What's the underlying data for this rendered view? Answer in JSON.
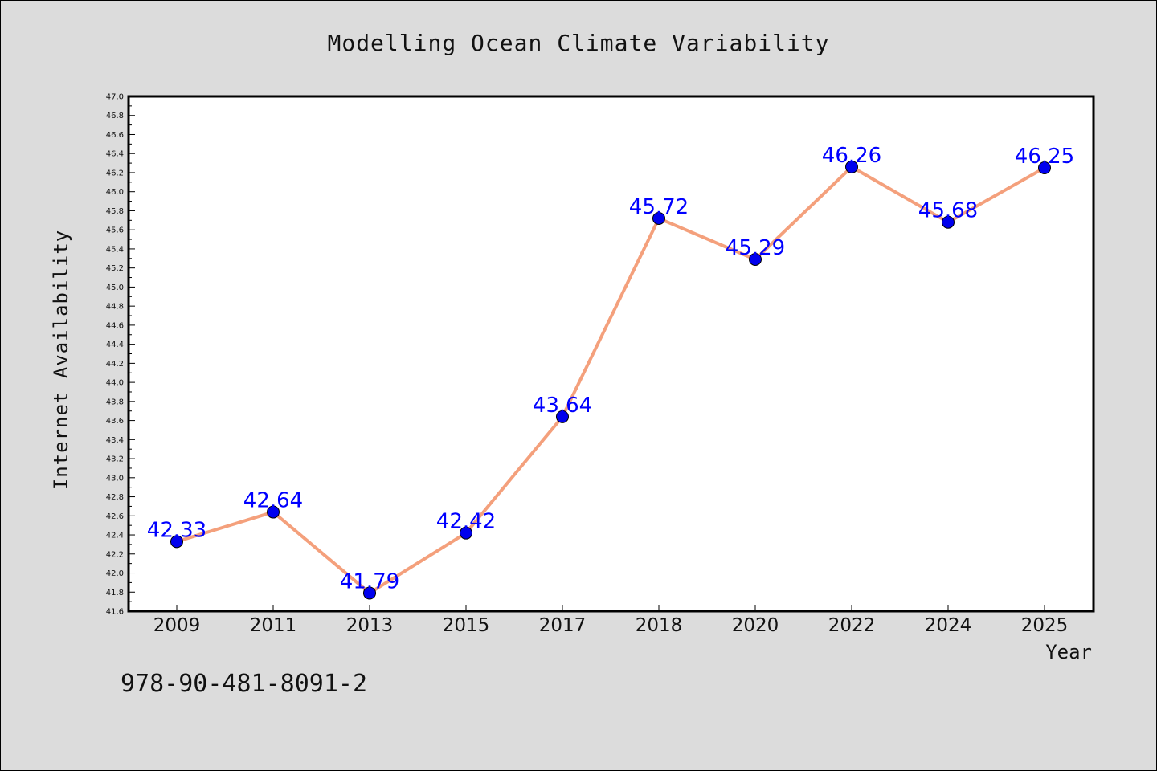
{
  "chart_data": {
    "type": "line",
    "title": "Modelling Ocean Climate Variability",
    "xlabel": "Year",
    "ylabel": "Internet Availability",
    "categories": [
      "2009",
      "2011",
      "2013",
      "2015",
      "2017",
      "2018",
      "2020",
      "2022",
      "2024",
      "2025"
    ],
    "series": [
      {
        "values": [
          42.33,
          42.64,
          41.79,
          42.42,
          43.64,
          45.72,
          45.29,
          46.26,
          45.68,
          46.25
        ],
        "labels": [
          "42.33",
          "42.64",
          "41.79",
          "42.42",
          "43.64",
          "45.72",
          "45.29",
          "46.26",
          "45.68",
          "46.25"
        ],
        "line_color": "#f4a07c",
        "marker_color": "#0000ee"
      }
    ],
    "ylim": [
      41.6,
      47.0
    ],
    "yticks": [
      "41.6",
      "41.8",
      "42.0",
      "42.2",
      "42.4",
      "42.6",
      "42.8",
      "43.0",
      "43.2",
      "43.4",
      "43.6",
      "43.8",
      "44.0",
      "44.2",
      "44.4",
      "44.6",
      "44.8",
      "45.0",
      "45.2",
      "45.4",
      "45.6",
      "45.8",
      "46.0",
      "46.2",
      "46.4",
      "46.6",
      "46.8",
      "47.0"
    ],
    "grid": false,
    "legend": "none",
    "data_label_color": "#0000ff"
  },
  "footer": {
    "isbn": "978-90-481-8091-2"
  }
}
